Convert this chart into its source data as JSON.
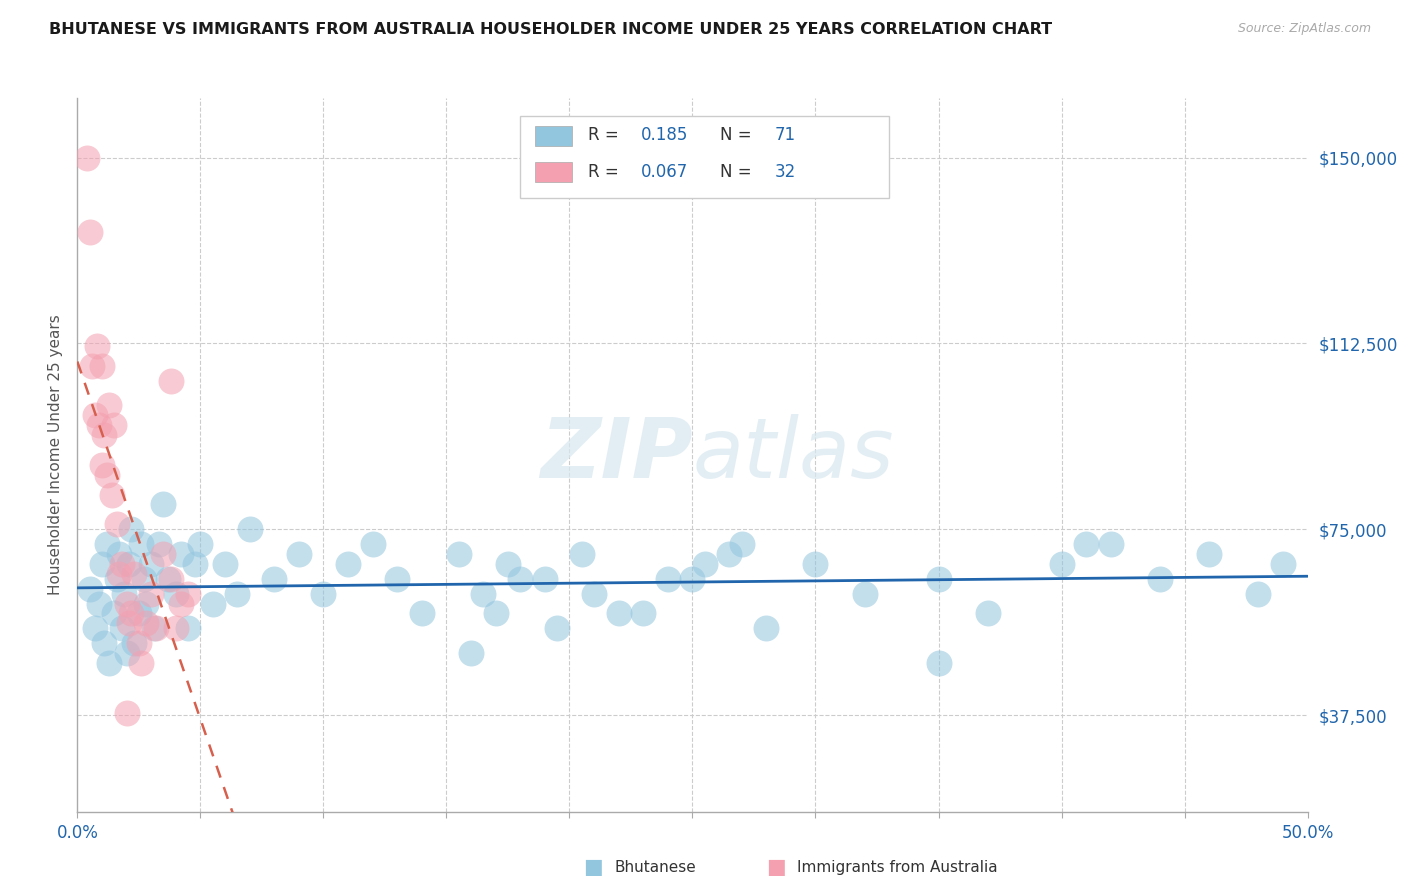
{
  "title": "BHUTANESE VS IMMIGRANTS FROM AUSTRALIA HOUSEHOLDER INCOME UNDER 25 YEARS CORRELATION CHART",
  "source": "Source: ZipAtlas.com",
  "ylabel": "Householder Income Under 25 years",
  "ytick_labels": [
    "$37,500",
    "$75,000",
    "$112,500",
    "$150,000"
  ],
  "ytick_values": [
    37500,
    75000,
    112500,
    150000
  ],
  "ymin": 18000,
  "ymax": 162000,
  "xmin": 0.0,
  "xmax": 0.5,
  "legend1_R": "0.185",
  "legend1_N": "71",
  "legend2_R": "0.067",
  "legend2_N": "32",
  "blue_scatter_color": "#92c5de",
  "pink_scatter_color": "#f4a0b0",
  "blue_line_color": "#2166ac",
  "pink_line_color": "#d6604d",
  "grid_color": "#cccccc",
  "title_color": "#1a1a1a",
  "tick_color": "#2166ac",
  "bhutanese_x": [
    0.005,
    0.007,
    0.009,
    0.01,
    0.011,
    0.012,
    0.013,
    0.015,
    0.016,
    0.017,
    0.018,
    0.019,
    0.02,
    0.021,
    0.022,
    0.023,
    0.025,
    0.026,
    0.027,
    0.028,
    0.03,
    0.031,
    0.033,
    0.035,
    0.037,
    0.04,
    0.042,
    0.045,
    0.048,
    0.05,
    0.055,
    0.06,
    0.065,
    0.07,
    0.08,
    0.09,
    0.1,
    0.11,
    0.12,
    0.13,
    0.14,
    0.155,
    0.165,
    0.175,
    0.19,
    0.205,
    0.22,
    0.24,
    0.255,
    0.27,
    0.16,
    0.17,
    0.18,
    0.195,
    0.21,
    0.23,
    0.25,
    0.265,
    0.28,
    0.3,
    0.32,
    0.35,
    0.37,
    0.4,
    0.42,
    0.44,
    0.46,
    0.48,
    0.35,
    0.41,
    0.49
  ],
  "bhutanese_y": [
    63000,
    55000,
    60000,
    68000,
    52000,
    72000,
    48000,
    58000,
    65000,
    70000,
    55000,
    62000,
    50000,
    68000,
    75000,
    52000,
    58000,
    72000,
    65000,
    60000,
    68000,
    55000,
    72000,
    80000,
    65000,
    62000,
    70000,
    55000,
    68000,
    72000,
    60000,
    68000,
    62000,
    75000,
    65000,
    70000,
    62000,
    68000,
    72000,
    65000,
    58000,
    70000,
    62000,
    68000,
    65000,
    70000,
    58000,
    65000,
    68000,
    72000,
    50000,
    58000,
    65000,
    55000,
    62000,
    58000,
    65000,
    70000,
    55000,
    68000,
    62000,
    65000,
    58000,
    68000,
    72000,
    65000,
    70000,
    62000,
    48000,
    72000,
    68000
  ],
  "australia_x": [
    0.004,
    0.005,
    0.006,
    0.007,
    0.008,
    0.009,
    0.01,
    0.01,
    0.011,
    0.012,
    0.013,
    0.014,
    0.015,
    0.016,
    0.017,
    0.018,
    0.02,
    0.021,
    0.022,
    0.023,
    0.025,
    0.026,
    0.028,
    0.03,
    0.032,
    0.035,
    0.038,
    0.04,
    0.042,
    0.045,
    0.038,
    0.02
  ],
  "australia_y": [
    150000,
    135000,
    108000,
    98000,
    112000,
    96000,
    88000,
    108000,
    94000,
    86000,
    100000,
    82000,
    96000,
    76000,
    66000,
    68000,
    60000,
    56000,
    58000,
    66000,
    52000,
    48000,
    56000,
    62000,
    55000,
    70000,
    65000,
    55000,
    60000,
    62000,
    105000,
    38000
  ]
}
